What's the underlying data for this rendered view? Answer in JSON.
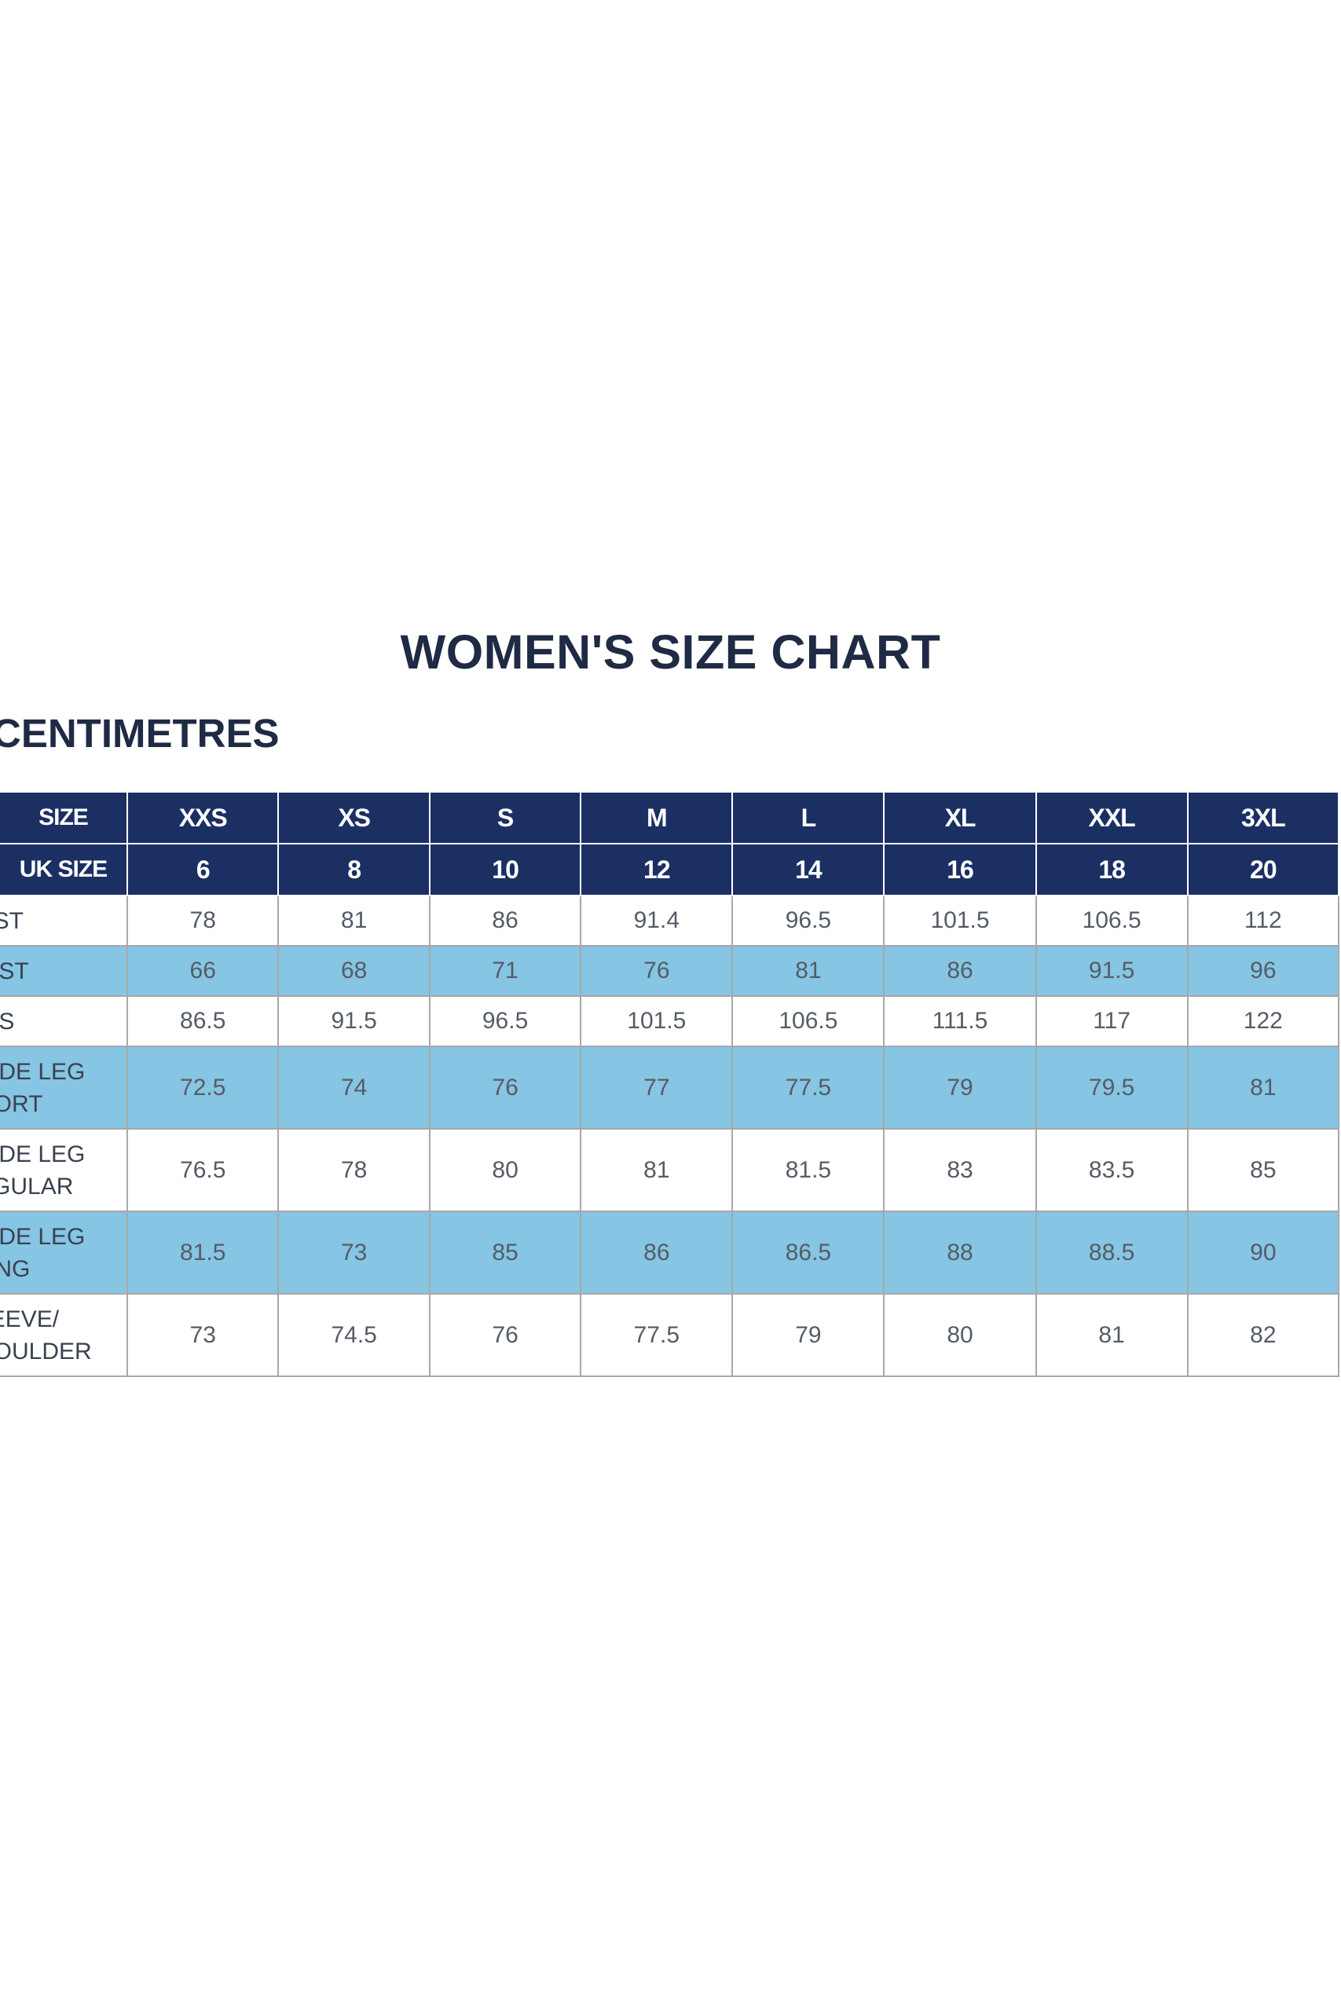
{
  "title": "WOMEN'S SIZE CHART",
  "unit_heading": "CENTIMETRES",
  "colors": {
    "header_bg": "#1b2f63",
    "stripe_bg": "#86c5e3",
    "text_dark": "#1f2a44"
  },
  "header_rows": [
    {
      "label": "SIZE",
      "values": [
        "XXS",
        "XS",
        "S",
        "M",
        "L",
        "XL",
        "XXL",
        "3XL"
      ]
    },
    {
      "label": "UK SIZE",
      "values": [
        "6",
        "8",
        "10",
        "12",
        "14",
        "16",
        "18",
        "20"
      ]
    }
  ],
  "rows": [
    {
      "label": "UST",
      "values": [
        "78",
        "81",
        "86",
        "91.4",
        "96.5",
        "101.5",
        "106.5",
        "112"
      ]
    },
    {
      "label": "AIST",
      "values": [
        "66",
        "68",
        "71",
        "76",
        "81",
        "86",
        "91.5",
        "96"
      ]
    },
    {
      "label": "IPS",
      "values": [
        "86.5",
        "91.5",
        "96.5",
        "101.5",
        "106.5",
        "111.5",
        "117",
        "122"
      ]
    },
    {
      "label": "SIDE LEG HORT",
      "values": [
        "72.5",
        "74",
        "76",
        "77",
        "77.5",
        "79",
        "79.5",
        "81"
      ]
    },
    {
      "label": "SIDE LEG EGULAR",
      "values": [
        "76.5",
        "78",
        "80",
        "81",
        "81.5",
        "83",
        "83.5",
        "85"
      ]
    },
    {
      "label": "SIDE LEG ONG",
      "values": [
        "81.5",
        "73",
        "85",
        "86",
        "86.5",
        "88",
        "88.5",
        "90"
      ]
    },
    {
      "label": "LEEVE/ HOULDER",
      "values": [
        "73",
        "74.5",
        "76",
        "77.5",
        "79",
        "80",
        "81",
        "82"
      ]
    }
  ]
}
